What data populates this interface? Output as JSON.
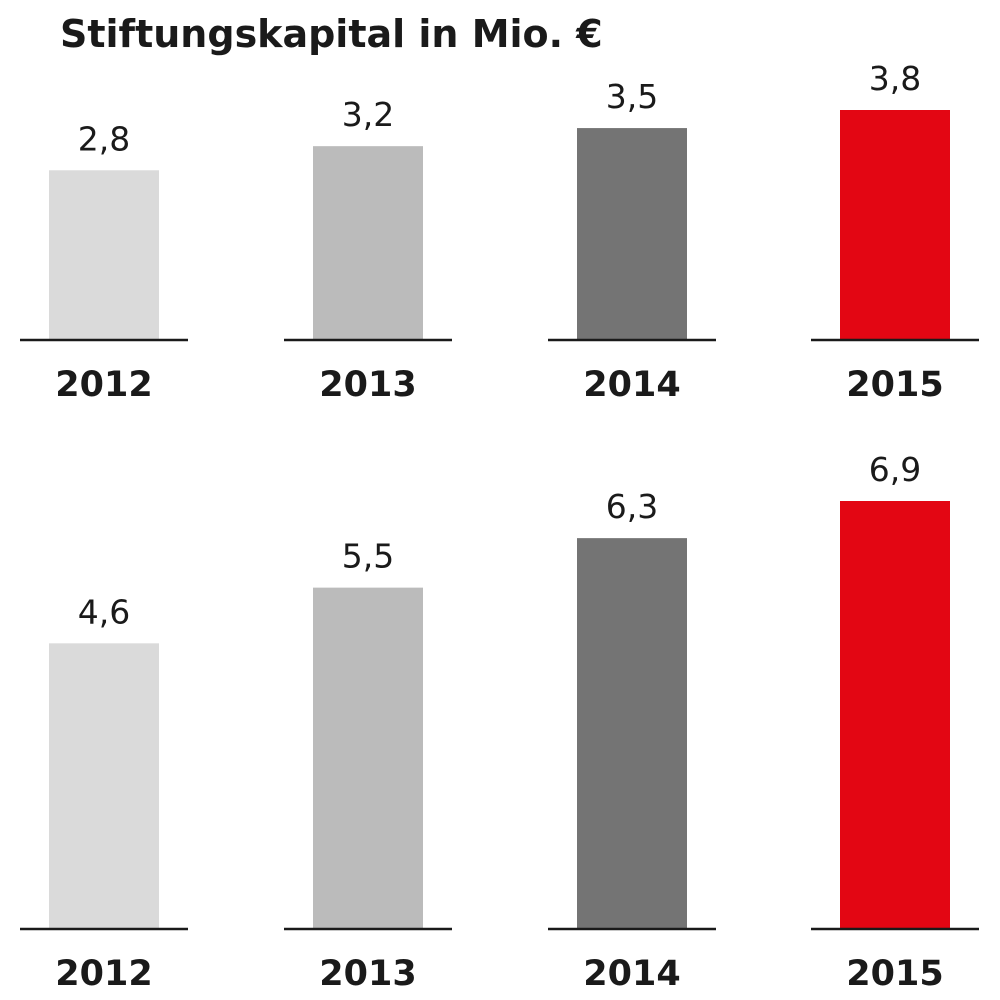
{
  "title": "Stiftungskapital in Mio. €",
  "chart_data": [
    {
      "type": "bar",
      "title": "Stiftungskapital in Mio. €",
      "categories": [
        "2012",
        "2013",
        "2014",
        "2015"
      ],
      "values": [
        2.8,
        3.2,
        3.5,
        3.8
      ],
      "value_labels": [
        "2,8",
        "3,2",
        "3,5",
        "3,8"
      ],
      "colors": [
        "#dadada",
        "#bbbbbb",
        "#747474",
        "#e30613"
      ],
      "ylim": [
        0,
        3.8
      ],
      "grid": false
    },
    {
      "type": "bar",
      "categories": [
        "2012",
        "2013",
        "2014",
        "2015"
      ],
      "values": [
        4.6,
        5.5,
        6.3,
        6.9
      ],
      "value_labels": [
        "4,6",
        "5,5",
        "6,3",
        "6,9"
      ],
      "colors": [
        "#dadada",
        "#bbbbbb",
        "#747474",
        "#e30613"
      ],
      "ylim": [
        0,
        6.9
      ],
      "grid": false
    }
  ]
}
